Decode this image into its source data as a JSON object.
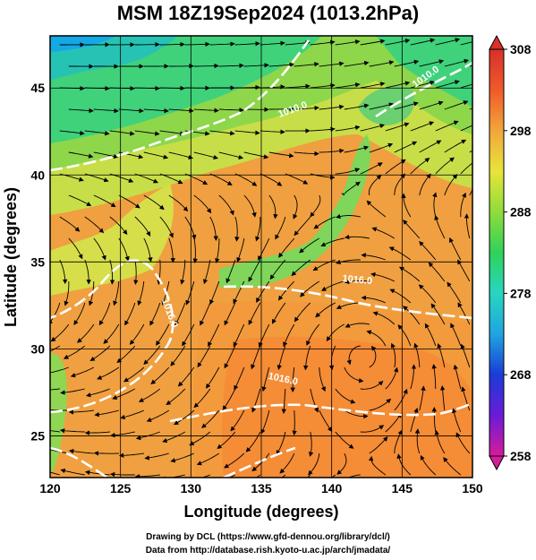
{
  "title": "MSM 18Z19Sep2024 (1013.2hPa)",
  "colors": {
    "cold": "#0a9ee0",
    "cool": "#2ccf80",
    "mild": "#8ed64a",
    "warm": "#d8e04a",
    "hot": "#f0a040",
    "hotter": "#f28a38",
    "contour": "#ffffff",
    "land": "#8fd6b4",
    "streamline": "#000000"
  },
  "chart_data": {
    "type": "map",
    "projection": "lat-lon",
    "xlim": [
      120,
      150
    ],
    "ylim": [
      22.6,
      48
    ],
    "xlabel": "Longitude (degrees)",
    "ylabel": "Latitude  (degrees)",
    "xticks": [
      "120",
      "125",
      "130",
      "135",
      "140",
      "145",
      "150"
    ],
    "yticks": [
      "25",
      "30",
      "35",
      "40",
      "45"
    ],
    "grid": true,
    "field": "temperature",
    "colorbar": {
      "min": 258,
      "max": 308,
      "ticks": [
        "308",
        "298",
        "288",
        "278",
        "268",
        "258"
      ],
      "stops": [
        "#d81b9b",
        "#6a1bd8",
        "#1a3cd8",
        "#1fa5e0",
        "#27d6c0",
        "#2fd25a",
        "#8fdc3a",
        "#e8e43a",
        "#f2a63a",
        "#ef5a2a",
        "#d8302a"
      ]
    },
    "contour_labels": [
      {
        "text": "1010.0",
        "lon": 137.3,
        "lat": 43.6,
        "rotate": -20
      },
      {
        "text": "1016.0",
        "lon": 141.8,
        "lat": 33.8,
        "rotate": 5
      },
      {
        "text": "1016.0",
        "lon": 136.5,
        "lat": 28.1,
        "rotate": 12
      },
      {
        "text": "1016.0",
        "lon": 128.3,
        "lat": 32.0,
        "rotate": 70
      },
      {
        "text": "1010.0",
        "lon": 146.8,
        "lat": 45.5,
        "rotate": -35
      }
    ],
    "vortex_center": {
      "lon": 142.2,
      "lat": 29.6
    },
    "flow_rotation": "counterclockwise"
  },
  "credits": {
    "line1": "Drawing by DCL (https://www.gfd-dennou.org/library/dcl/)",
    "line2": "Data from http://database.rish.kyoto-u.ac.jp/arch/jmadata/"
  }
}
